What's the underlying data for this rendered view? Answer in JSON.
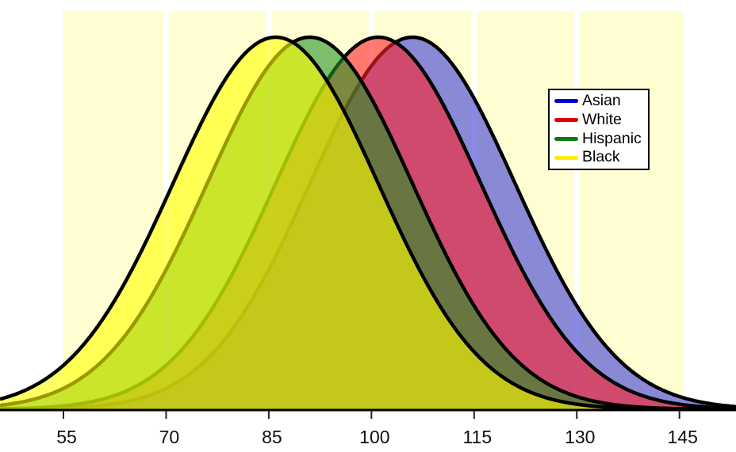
{
  "page": {
    "background": "#FFFFFF"
  },
  "chart_data": {
    "type": "area",
    "subtype": "overlapping-normal-distribution-curves",
    "title": "",
    "xlabel": "",
    "ylabel": "",
    "x_ticks": [
      55,
      70,
      85,
      100,
      115,
      130,
      145
    ],
    "x_tick_labels": [
      "55",
      "70",
      "85",
      "100",
      "115",
      "130",
      "145"
    ],
    "plot_area_x_range": [
      55,
      145
    ],
    "visible_x_range": [
      45.7,
      153.3
    ],
    "grid": "vertical white gridlines at interior x ticks",
    "plot_background": "#FEFED2",
    "gridline_color": "#FFFFFF",
    "axis_color": "#000000",
    "tick_color": "#222222",
    "curves_equal_height": true,
    "series": [
      {
        "name": "Asian",
        "mean": 106,
        "sd": 15,
        "fill": "#3A3AD8",
        "fill_opacity": 0.6,
        "outline": "#000000"
      },
      {
        "name": "White",
        "mean": 101,
        "sd": 15,
        "fill": "#FF2028",
        "fill_opacity": 0.6,
        "outline": "#000000"
      },
      {
        "name": "Hispanic",
        "mean": 91,
        "sd": 15,
        "fill": "#259425",
        "fill_opacity": 0.6,
        "outline": "#000000"
      },
      {
        "name": "Black",
        "mean": 86,
        "sd": 15,
        "fill": "#FFFF00",
        "fill_opacity": 0.6,
        "outline": "#000000"
      }
    ],
    "draw_order_bottom_to_top": [
      "Asian",
      "White",
      "Hispanic",
      "Black"
    ],
    "legend_position": "top-right"
  },
  "legend": {
    "items": [
      {
        "label": "Asian",
        "color": "#0000CC"
      },
      {
        "label": "White",
        "color": "#DD0000"
      },
      {
        "label": "Hispanic",
        "color": "#0F7A0F"
      },
      {
        "label": "Black",
        "color": "#FFEE00"
      }
    ]
  }
}
